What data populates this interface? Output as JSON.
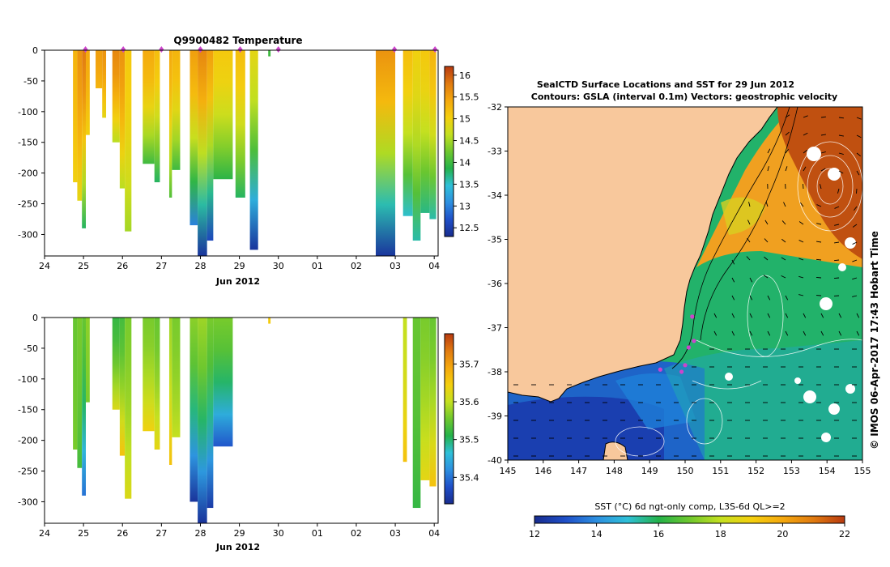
{
  "chart_data": [
    {
      "type": "heatmap",
      "title": "Q9900482  Temperature",
      "xlabel": "Jun 2012",
      "x_ticks": [
        "24",
        "25",
        "26",
        "27",
        "28",
        "29",
        "30",
        "01",
        "02",
        "03",
        "04"
      ],
      "y_ticks": [
        "0",
        "-50",
        "-100",
        "-150",
        "-200",
        "-250",
        "-300"
      ],
      "ylim": [
        -335,
        0
      ],
      "colorbar_ticks": [
        "16",
        "15.5",
        "15",
        "14.5",
        "14",
        "13.5",
        "13",
        "12.5"
      ],
      "colorbar_range": [
        12.3,
        16.2
      ],
      "marker_color": "#cc44cc",
      "colormap": [
        "#182c8e",
        "#1f4fc8",
        "#2d8fe0",
        "#2fc0d8",
        "#24b24a",
        "#6fc82e",
        "#c4e020",
        "#f4cf0e",
        "#f4a80e",
        "#e07a10",
        "#b83a10"
      ],
      "profiles": [
        {
          "t0": 24.73,
          "t1": 24.84,
          "depth": 215,
          "top": 15.3,
          "bottom": 15.0
        },
        {
          "t0": 24.84,
          "t1": 24.96,
          "depth": 245,
          "top": 15.6,
          "bottom": 14.9
        },
        {
          "t0": 24.96,
          "t1": 25.06,
          "depth": 290,
          "top": 15.8,
          "bottom": 13.8
        },
        {
          "t0": 25.06,
          "t1": 25.16,
          "depth": 138,
          "top": 15.4,
          "bottom": 15.0
        },
        {
          "t0": 25.31,
          "t1": 25.48,
          "depth": 62,
          "top": 15.5,
          "bottom": 15.3
        },
        {
          "t0": 25.48,
          "t1": 25.58,
          "depth": 110,
          "top": 15.6,
          "bottom": 14.9
        },
        {
          "t0": 25.74,
          "t1": 25.93,
          "depth": 150,
          "top": 15.7,
          "bottom": 14.6
        },
        {
          "t0": 25.93,
          "t1": 26.06,
          "depth": 225,
          "top": 15.6,
          "bottom": 14.6
        },
        {
          "t0": 26.06,
          "t1": 26.23,
          "depth": 295,
          "top": 15.1,
          "bottom": 14.5
        },
        {
          "t0": 26.52,
          "t1": 26.82,
          "depth": 185,
          "top": 15.4,
          "bottom": 14.0
        },
        {
          "t0": 26.82,
          "t1": 26.96,
          "depth": 215,
          "top": 15.2,
          "bottom": 13.8
        },
        {
          "t0": 27.2,
          "t1": 27.27,
          "depth": 240,
          "top": 15.4,
          "bottom": 14.1
        },
        {
          "t0": 27.27,
          "t1": 27.48,
          "depth": 195,
          "top": 15.3,
          "bottom": 14.0
        },
        {
          "t0": 27.73,
          "t1": 27.93,
          "depth": 285,
          "top": 15.5,
          "bottom": 13.0
        },
        {
          "t0": 27.93,
          "t1": 28.17,
          "depth": 335,
          "top": 15.7,
          "bottom": 12.4
        },
        {
          "t0": 28.17,
          "t1": 28.33,
          "depth": 310,
          "top": 15.5,
          "bottom": 12.6
        },
        {
          "t0": 28.33,
          "t1": 28.83,
          "depth": 210,
          "top": 15.1,
          "bottom": 13.9
        },
        {
          "t0": 28.9,
          "t1": 29.15,
          "depth": 240,
          "top": 15.2,
          "bottom": 13.8
        },
        {
          "t0": 29.27,
          "t1": 29.48,
          "depth": 325,
          "top": 14.9,
          "bottom": 12.4
        },
        {
          "t0": 29.74,
          "t1": 29.8,
          "depth": 10,
          "top": 14.0,
          "bottom": 14.0
        },
        {
          "t0": 32.5,
          "t1": 33.0,
          "depth": 335,
          "top": 15.6,
          "bottom": 12.4
        },
        {
          "t0": 33.2,
          "t1": 33.45,
          "depth": 270,
          "top": 15.2,
          "bottom": 13.5
        },
        {
          "t0": 33.45,
          "t1": 33.65,
          "depth": 310,
          "top": 15.0,
          "bottom": 13.6
        },
        {
          "t0": 33.65,
          "t1": 33.88,
          "depth": 265,
          "top": 15.1,
          "bottom": 13.7
        },
        {
          "t0": 33.88,
          "t1": 34.05,
          "depth": 275,
          "top": 15.3,
          "bottom": 13.6
        }
      ],
      "markers": [
        25.05,
        26.02,
        27.0,
        28.0,
        29.02,
        30.0,
        32.98,
        34.02
      ]
    },
    {
      "type": "heatmap",
      "title": "",
      "xlabel": "Jun 2012",
      "x_ticks": [
        "24",
        "25",
        "26",
        "27",
        "28",
        "29",
        "30",
        "01",
        "02",
        "03",
        "04"
      ],
      "y_ticks": [
        "0",
        "-50",
        "-100",
        "-150",
        "-200",
        "-250",
        "-300"
      ],
      "ylim": [
        -335,
        0
      ],
      "colorbar_ticks": [
        "35.7",
        "35.6",
        "35.5",
        "35.4"
      ],
      "colorbar_range": [
        35.33,
        35.78
      ],
      "colormap": [
        "#182c8e",
        "#1f4fc8",
        "#2d8fe0",
        "#2fc0d8",
        "#24b24a",
        "#6fc82e",
        "#c4e020",
        "#f4cf0e",
        "#f4a80e",
        "#e07a10",
        "#b83a10"
      ],
      "profiles": [
        {
          "t0": 24.73,
          "t1": 24.84,
          "depth": 215,
          "top": 35.55,
          "bottom": 35.56
        },
        {
          "t0": 24.84,
          "t1": 24.96,
          "depth": 245,
          "top": 35.56,
          "bottom": 35.53
        },
        {
          "t0": 24.96,
          "t1": 25.06,
          "depth": 290,
          "top": 35.55,
          "bottom": 35.4
        },
        {
          "t0": 25.06,
          "t1": 25.16,
          "depth": 138,
          "top": 35.57,
          "bottom": 35.56
        },
        {
          "t0": 25.74,
          "t1": 25.93,
          "depth": 150,
          "top": 35.52,
          "bottom": 35.62
        },
        {
          "t0": 25.93,
          "t1": 26.06,
          "depth": 225,
          "top": 35.53,
          "bottom": 35.66
        },
        {
          "t0": 26.06,
          "t1": 26.23,
          "depth": 295,
          "top": 35.56,
          "bottom": 35.62
        },
        {
          "t0": 26.52,
          "t1": 26.82,
          "depth": 185,
          "top": 35.56,
          "bottom": 35.64
        },
        {
          "t0": 26.82,
          "t1": 26.96,
          "depth": 215,
          "top": 35.55,
          "bottom": 35.63
        },
        {
          "t0": 27.2,
          "t1": 27.27,
          "depth": 240,
          "top": 35.58,
          "bottom": 35.66
        },
        {
          "t0": 27.27,
          "t1": 27.48,
          "depth": 195,
          "top": 35.56,
          "bottom": 35.6
        },
        {
          "t0": 27.73,
          "t1": 27.93,
          "depth": 300,
          "top": 35.57,
          "bottom": 35.34
        },
        {
          "t0": 27.93,
          "t1": 28.17,
          "depth": 335,
          "top": 35.58,
          "bottom": 35.34
        },
        {
          "t0": 28.17,
          "t1": 28.33,
          "depth": 310,
          "top": 35.56,
          "bottom": 35.35
        },
        {
          "t0": 28.33,
          "t1": 28.83,
          "depth": 210,
          "top": 35.56,
          "bottom": 35.38
        },
        {
          "t0": 29.74,
          "t1": 29.8,
          "depth": 10,
          "top": 35.65,
          "bottom": 35.65
        },
        {
          "t0": 33.2,
          "t1": 33.3,
          "depth": 235,
          "top": 35.6,
          "bottom": 35.66
        },
        {
          "t0": 33.45,
          "t1": 33.65,
          "depth": 310,
          "top": 35.55,
          "bottom": 35.52
        },
        {
          "t0": 33.65,
          "t1": 33.88,
          "depth": 265,
          "top": 35.56,
          "bottom": 35.63
        },
        {
          "t0": 33.88,
          "t1": 34.05,
          "depth": 275,
          "top": 35.55,
          "bottom": 35.66
        }
      ]
    },
    {
      "type": "heatmap",
      "title": "SealCTD Surface Locations and SST for 29 Jun 2012",
      "subtitle": "Contours: GSLA (interval 0.1m) Vectors: geostrophic velocity",
      "x_ticks": [
        "145",
        "146",
        "147",
        "148",
        "149",
        "150",
        "151",
        "152",
        "153",
        "154",
        "155"
      ],
      "y_ticks": [
        "-32",
        "-33",
        "-34",
        "-35",
        "-36",
        "-37",
        "-38",
        "-39",
        "-40"
      ],
      "xlim": [
        145,
        155
      ],
      "ylim": [
        -40,
        -32
      ],
      "colorbar_label": "SST (°C) 6d ngt-only comp, L3S-6d QL>=2",
      "colorbar_ticks": [
        "12",
        "14",
        "16",
        "18",
        "20",
        "22"
      ],
      "colorbar_range": [
        12,
        22
      ],
      "land_color": "#f8c89c",
      "seal_locations": [
        {
          "lon": 150.1,
          "lat": -37.45
        },
        {
          "lon": 150.25,
          "lat": -37.3
        },
        {
          "lon": 149.9,
          "lat": -38.0
        },
        {
          "lon": 150.0,
          "lat": -37.85
        },
        {
          "lon": 149.3,
          "lat": -37.95
        },
        {
          "lon": 150.2,
          "lat": -36.75
        }
      ],
      "side_label": "© IMOS 06-Apr-2017 17:43 Hobart Time"
    }
  ]
}
